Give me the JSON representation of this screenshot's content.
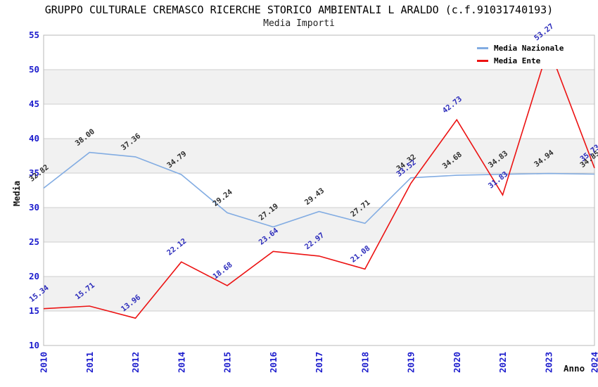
{
  "chart_data": {
    "type": "line",
    "title": "GRUPPO CULTURALE CREMASCO RICERCHE STORICO AMBIENTALI L ARALDO (c.f.91031740193)",
    "subtitle": "Media Importi",
    "xlabel": "Anno",
    "ylabel": "Media",
    "ylim": [
      10,
      55
    ],
    "ytick_step": 5,
    "grid": true,
    "legend_position": "top-right",
    "band_colors": [
      "#ffffff",
      "#f1f1f1"
    ],
    "grid_color": "#cfcfcf",
    "border_color": "#b9b9b9",
    "axis_tick_color": "#1c1ccd",
    "categories": [
      "2010",
      "2011",
      "2012",
      "2014",
      "2015",
      "2016",
      "2017",
      "2018",
      "2019",
      "2020",
      "2021",
      "2023",
      "2024"
    ],
    "series": [
      {
        "name": "Media Nazionale",
        "color": "#82ace2",
        "label_color": "#2f2f2f",
        "values": [
          32.82,
          38.0,
          37.36,
          34.79,
          29.24,
          27.19,
          29.43,
          27.71,
          34.32,
          34.68,
          34.83,
          34.94,
          34.85
        ]
      },
      {
        "name": "Media Ente",
        "color": "#ec1212",
        "label_color": "#2b2bbb",
        "values": [
          15.34,
          15.71,
          13.96,
          22.12,
          18.68,
          23.64,
          22.97,
          21.08,
          33.52,
          42.73,
          31.83,
          53.27,
          35.73
        ]
      }
    ]
  }
}
